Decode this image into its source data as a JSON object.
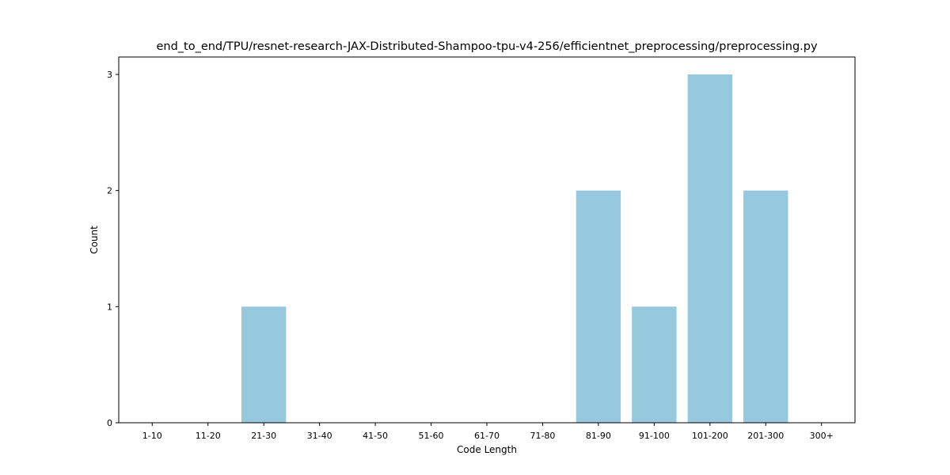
{
  "chart_data": {
    "type": "bar",
    "title": "end_to_end/TPU/resnet-research-JAX-Distributed-Shampoo-tpu-v4-256/efficientnet_preprocessing/preprocessing.py",
    "xlabel": "Code Length",
    "ylabel": "Count",
    "categories": [
      "1-10",
      "11-20",
      "21-30",
      "31-40",
      "41-50",
      "51-60",
      "61-70",
      "71-80",
      "81-90",
      "91-100",
      "101-200",
      "201-300",
      "300+"
    ],
    "values": [
      0,
      0,
      1,
      0,
      0,
      0,
      0,
      0,
      2,
      1,
      3,
      2,
      0
    ],
    "ylim": [
      0,
      3.15
    ],
    "yticks": [
      0,
      1,
      2,
      3
    ],
    "grid": false,
    "bar_color": "#96c9dd"
  }
}
